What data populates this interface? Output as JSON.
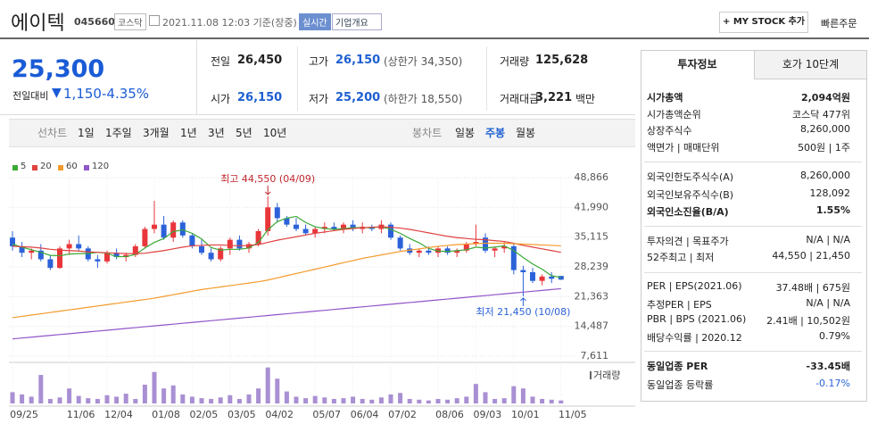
{
  "header": {
    "name": "에이텍",
    "code": "045660",
    "market": "코스닥",
    "timestamp": "2021.11.08 12:03 기준(장중)",
    "realtime": "실시간",
    "company": "기업개요",
    "mystock": "+ MY STOCK 추가",
    "quick_order": "빠른주문"
  },
  "price": {
    "current": "25,300",
    "change_label": "전일대비",
    "change": "1,150",
    "change_pct": "-4.35%"
  },
  "stats": [
    [
      {
        "label": "전일",
        "value": "26,450"
      },
      {
        "label": "고가",
        "value": "26,150",
        "extra": "(상한가 34,350)",
        "color": "#1d5fd1"
      },
      {
        "label": "거래량",
        "value": "125,628"
      }
    ],
    [
      {
        "label": "시가",
        "value": "26,150",
        "color": "#1d5fd1"
      },
      {
        "label": "저가",
        "value": "25,200",
        "extra": "(하한가 18,550)",
        "color": "#1d5fd1"
      },
      {
        "label": "거래대금",
        "value": "3,221",
        "extra": "백만"
      }
    ]
  ],
  "periods": {
    "line_label": "선차트",
    "line": [
      "1일",
      "1주일",
      "3개월",
      "1년",
      "3년",
      "5년",
      "10년"
    ],
    "candle_label": "봉차트",
    "candle": [
      "일봉",
      "주봉",
      "월봉"
    ],
    "selected": 1
  },
  "chart_data": {
    "type": "candlestick",
    "up_color": "#e8363b",
    "down_color": "#2b62d9",
    "volume_color": "#a98fd3",
    "volume_label": "거래량",
    "grid": true,
    "ylim": [
      7611,
      48866
    ],
    "yticks": [
      {
        "value": 48866,
        "label": "48,866"
      },
      {
        "value": 41990,
        "label": "41,990"
      },
      {
        "value": 35115,
        "label": "35,115"
      },
      {
        "value": 28239,
        "label": "28,239"
      },
      {
        "value": 21363,
        "label": "21,363"
      },
      {
        "value": 14487,
        "label": "14,487"
      },
      {
        "value": 7611,
        "label": "7,611"
      }
    ],
    "volume_ylim": [
      0,
      500
    ],
    "high": {
      "text": "최고 44,550 (04/09)",
      "index": 27,
      "color": "#c0262c"
    },
    "low": {
      "text": "최저 21,450 (10/08)",
      "index": 54,
      "color": "#2b62d9"
    },
    "categories": [
      "09/25",
      null,
      null,
      null,
      null,
      null,
      "11/06",
      null,
      null,
      null,
      "12/04",
      null,
      null,
      null,
      null,
      "01/08",
      null,
      null,
      null,
      "02/05",
      null,
      null,
      null,
      "03/05",
      null,
      null,
      null,
      "04/02",
      null,
      null,
      null,
      null,
      "05/07",
      null,
      null,
      null,
      "06/04",
      null,
      null,
      null,
      "07/02",
      null,
      null,
      null,
      null,
      "08/06",
      null,
      null,
      null,
      "09/03",
      null,
      null,
      null,
      "10/01",
      null,
      null,
      null,
      null,
      "11/05"
    ],
    "candles": [
      [
        35000,
        36500,
        32000,
        33000
      ],
      [
        33000,
        34000,
        30500,
        31500
      ],
      [
        31500,
        32500,
        30000,
        32000
      ],
      [
        32000,
        33500,
        29500,
        30000
      ],
      [
        30000,
        31000,
        27500,
        28000
      ],
      [
        28000,
        33000,
        27800,
        32500
      ],
      [
        32500,
        34500,
        31000,
        33500
      ],
      [
        33500,
        35500,
        32000,
        32500
      ],
      [
        32500,
        33000,
        29500,
        30000
      ],
      [
        30000,
        31000,
        28000,
        29500
      ],
      [
        29500,
        32000,
        29000,
        31500
      ],
      [
        31500,
        32500,
        30000,
        30500
      ],
      [
        30500,
        31500,
        29500,
        31000
      ],
      [
        31000,
        33500,
        30500,
        33000
      ],
      [
        33000,
        37500,
        32500,
        37000
      ],
      [
        37000,
        43500,
        36000,
        38000
      ],
      [
        38000,
        40000,
        34500,
        35000
      ],
      [
        35000,
        39000,
        34000,
        38500
      ],
      [
        38500,
        39000,
        35000,
        35500
      ],
      [
        35500,
        36000,
        32500,
        33000
      ],
      [
        33000,
        34500,
        31000,
        31500
      ],
      [
        31500,
        32500,
        29500,
        30000
      ],
      [
        30000,
        33000,
        29500,
        32500
      ],
      [
        32500,
        35000,
        31000,
        34500
      ],
      [
        34500,
        35500,
        32000,
        32500
      ],
      [
        32500,
        34000,
        31500,
        33500
      ],
      [
        33500,
        37000,
        33000,
        36500
      ],
      [
        36500,
        44550,
        35500,
        42000
      ],
      [
        42000,
        43000,
        38500,
        39500
      ],
      [
        39500,
        40000,
        37500,
        38000
      ],
      [
        38000,
        39500,
        36500,
        37000
      ],
      [
        37000,
        38000,
        35500,
        36000
      ],
      [
        36000,
        37500,
        35000,
        37000
      ],
      [
        37000,
        38500,
        36000,
        37500
      ],
      [
        37500,
        38500,
        36500,
        37000
      ],
      [
        37000,
        38500,
        36000,
        38000
      ],
      [
        38000,
        39000,
        36500,
        37000
      ],
      [
        37000,
        38500,
        36000,
        37500
      ],
      [
        37500,
        38000,
        36500,
        37000
      ],
      [
        37000,
        39000,
        36000,
        38000
      ],
      [
        38000,
        38500,
        34500,
        35000
      ],
      [
        35000,
        35500,
        32000,
        32500
      ],
      [
        32500,
        33500,
        31000,
        31500
      ],
      [
        31500,
        32500,
        30500,
        32000
      ],
      [
        32000,
        33000,
        31000,
        31500
      ],
      [
        31500,
        33000,
        30500,
        32500
      ],
      [
        32500,
        33000,
        31000,
        31500
      ],
      [
        31500,
        32500,
        30500,
        32000
      ],
      [
        32000,
        34000,
        31500,
        33500
      ],
      [
        33500,
        38000,
        33000,
        34000
      ],
      [
        35000,
        36000,
        31500,
        32000
      ],
      [
        32000,
        33000,
        30500,
        32500
      ],
      [
        32500,
        34000,
        31500,
        33000
      ],
      [
        33000,
        33500,
        26500,
        27500
      ],
      [
        27500,
        28500,
        21450,
        27000
      ],
      [
        27000,
        28000,
        24500,
        25000
      ],
      [
        25000,
        26500,
        24000,
        26000
      ],
      [
        26000,
        27000,
        24500,
        25500
      ],
      [
        26150,
        26150,
        25200,
        25300
      ]
    ],
    "volumes": [
      150,
      120,
      90,
      380,
      60,
      80,
      200,
      100,
      70,
      60,
      110,
      90,
      130,
      60,
      250,
      420,
      200,
      240,
      120,
      90,
      70,
      60,
      80,
      110,
      60,
      120,
      200,
      480,
      330,
      160,
      90,
      70,
      100,
      80,
      60,
      70,
      90,
      60,
      50,
      80,
      120,
      140,
      60,
      50,
      40,
      60,
      50,
      70,
      90,
      260,
      150,
      60,
      70,
      230,
      200,
      90,
      60,
      50,
      40
    ],
    "series": [
      {
        "name": "5",
        "color": "#3aa935",
        "values": [
          33500,
          32800,
          32200,
          31600,
          30900,
          30800,
          31200,
          31300,
          31300,
          31600,
          31400,
          30600,
          30600,
          31100,
          32600,
          33900,
          34800,
          36400,
          36800,
          36000,
          34700,
          32700,
          32100,
          32300,
          32300,
          32600,
          33900,
          36800,
          38700,
          39500,
          39900,
          38500,
          37500,
          37100,
          36900,
          37100,
          37300,
          37300,
          37300,
          37500,
          36900,
          36000,
          34800,
          33800,
          32500,
          31900,
          31800,
          32000,
          32200,
          32800,
          32600,
          32800,
          33100,
          32000,
          30400,
          28900,
          27700,
          26200,
          25800
        ]
      },
      {
        "name": "20",
        "color": "#e0413f",
        "values": [
          33000,
          32900,
          32800,
          32600,
          32300,
          32100,
          32000,
          31900,
          31700,
          31600,
          31500,
          31400,
          31300,
          31300,
          31400,
          31700,
          32000,
          32400,
          32800,
          33100,
          33200,
          33300,
          33300,
          33200,
          33100,
          33200,
          33400,
          33900,
          34400,
          34800,
          35200,
          35600,
          36000,
          36300,
          36600,
          36900,
          37100,
          37300,
          37400,
          37500,
          37400,
          37200,
          36900,
          36500,
          36100,
          35700,
          35300,
          35000,
          34800,
          34600,
          34500,
          34300,
          34100,
          33700,
          33200,
          32800,
          32400,
          32000,
          31600
        ]
      },
      {
        "name": "60",
        "color": "#f39a2b",
        "values": [
          16500,
          16800,
          17100,
          17400,
          17700,
          18000,
          18300,
          18600,
          18900,
          19200,
          19500,
          19800,
          20100,
          20400,
          20700,
          21000,
          21400,
          21800,
          22200,
          22600,
          23000,
          23300,
          23600,
          23900,
          24200,
          24500,
          24800,
          25200,
          25700,
          26200,
          26700,
          27200,
          27700,
          28200,
          28700,
          29200,
          29700,
          30200,
          30600,
          31000,
          31400,
          31800,
          32100,
          32400,
          32700,
          33000,
          33200,
          33400,
          33500,
          33600,
          33700,
          33700,
          33700,
          33600,
          33500,
          33400,
          33300,
          33200,
          33100
        ]
      },
      {
        "name": "120",
        "color": "#9155c9",
        "values": [
          11600,
          11800,
          12000,
          12200,
          12400,
          12600,
          12800,
          13000,
          13200,
          13400,
          13600,
          13800,
          14000,
          14200,
          14400,
          14600,
          14800,
          15000,
          15200,
          15400,
          15600,
          15800,
          16000,
          16200,
          16400,
          16600,
          16800,
          17000,
          17200,
          17400,
          17600,
          17800,
          18000,
          18200,
          18400,
          18600,
          18800,
          19000,
          19200,
          19400,
          19600,
          19800,
          20000,
          20200,
          20400,
          20600,
          20800,
          21000,
          21200,
          21400,
          21600,
          21800,
          22000,
          22200,
          22400,
          22600,
          22800,
          23000,
          23200
        ]
      }
    ]
  },
  "invest": {
    "tabs": [
      "투자정보",
      "호가 10단계"
    ],
    "selected": 0,
    "groups": [
      [
        {
          "label": "시가총액",
          "value": "2,094억원",
          "bold": true
        },
        {
          "label": "시가총액순위",
          "value": "코스닥 477위"
        },
        {
          "label": "상장주식수",
          "value": "8,260,000"
        },
        {
          "label": "액면가 | 매매단위",
          "value": "500원 | 1주"
        }
      ],
      [
        {
          "label": "외국인한도주식수(A)",
          "value": "8,260,000"
        },
        {
          "label": "외국인보유주식수(B)",
          "value": "128,092"
        },
        {
          "label": "외국인소진율(B/A)",
          "value": "1.55%",
          "bold": true
        }
      ],
      [
        {
          "label": "투자의견 | 목표주가",
          "value": "N/A | N/A"
        },
        {
          "label": "52주최고 | 최저",
          "value": "44,550 | 21,450"
        }
      ],
      [
        {
          "label": "PER | EPS(2021.06)",
          "value": "37.48배 | 675원"
        },
        {
          "label": "추정PER | EPS",
          "value": "N/A | N/A"
        },
        {
          "label": "PBR | BPS (2021.06)",
          "value": "2.41배 | 10,502원"
        },
        {
          "label": "배당수익률 | 2020.12",
          "value": "0.79%"
        }
      ],
      [
        {
          "label": "동일업종 PER",
          "value": "-33.45배",
          "bold": true
        },
        {
          "label": "동일업종 등락률",
          "value": "-0.17%",
          "color": "#2b62d9"
        }
      ]
    ]
  }
}
